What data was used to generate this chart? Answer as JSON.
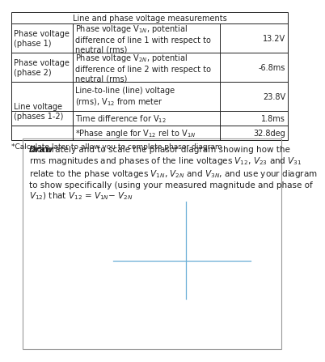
{
  "title": "Line and phase voltage measurements",
  "rows": [
    {
      "col1": "Phase voltage\n(phase 1)",
      "col2": "Phase voltage V$_{1N}$, potential\ndifference of line 1 with respect to\nneutral (rms)",
      "col3": "13.2V"
    },
    {
      "col1": "Phase voltage\n(phase 2)",
      "col2": "Phase voltage V$_{2N}$, potential\ndifference of line 2 with respect to\nneutral (rms)",
      "col3": "-6.8ms"
    },
    {
      "col1": "Line voltage\n(phases 1-2)",
      "col2": "Line-to-line (line) voltage\n(rms), V$_{12}$ from meter",
      "col3": "23.8V"
    },
    {
      "col1": "",
      "col2": "Time difference for V$_{12}$",
      "col3": "1.8ms"
    },
    {
      "col1": "",
      "col2": "*Phase angle for V$_{12}$ rel to V$_{1N}$",
      "col3": "32.8deg"
    }
  ],
  "footnote": "*Calculate later to allow you to complete phasor diagram",
  "draw_bold": "Draw",
  "draw_rest": " accurately and to scale the phasor diagram showing how the\nrms magnitudes and phases of the line voltages V$_{12}$, V$_{23}$ and V$_{31}$\nrelate to the phase voltages V$_{1N}$, V$_{2N}$ and V$_{3N}$, and use your diagram\nto show specifically (using your measured magnitude and phase of\nV$_{12}$) that V$_{12}$ = V$_{1N}$− V$_{2N}$",
  "crosshair_color": "#6aaed6",
  "border_color": "#222222",
  "bg_color": "#ffffff",
  "font_color": "#222222",
  "table_fs": 7.0,
  "draw_fs": 7.5
}
